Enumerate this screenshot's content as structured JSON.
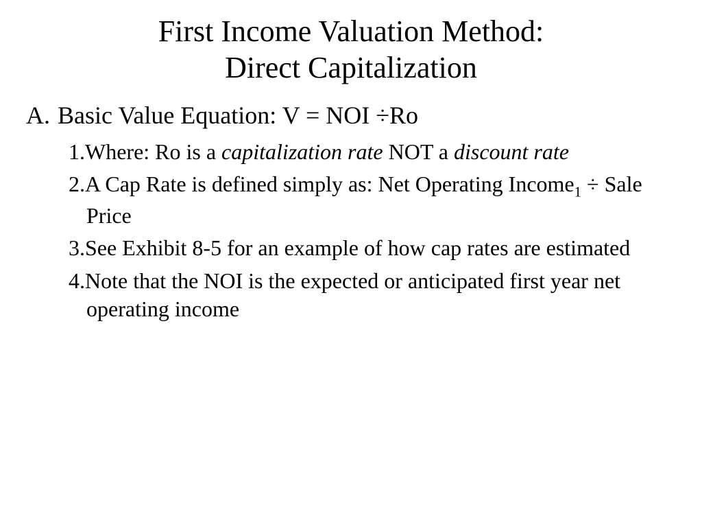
{
  "title_line1": "First Income Valuation Method:",
  "title_line2": "Direct Capitalization",
  "main": {
    "marker": "A.",
    "text": "Basic Value Equation:  V = NOI ÷Ro"
  },
  "subs": {
    "n1": "1.",
    "t1a": "Where:  Ro is a ",
    "t1b": "capitalization rate",
    "t1c": " NOT a ",
    "t1d": "discount rate",
    "n2": "2.",
    "t2a": "A Cap Rate is defined simply as: Net Operating Income",
    "t2b": "1",
    "t2c": " ÷ Sale Price",
    "n3": "3.",
    "t3": "See Exhibit 8-5 for an example of how cap rates are estimated",
    "n4": "4.",
    "t4": "Note that the NOI is the expected or anticipated first year net operating income"
  },
  "colors": {
    "background": "#ffffff",
    "text": "#000000"
  },
  "fontsize": {
    "title": 44,
    "main": 36,
    "sub": 32
  }
}
